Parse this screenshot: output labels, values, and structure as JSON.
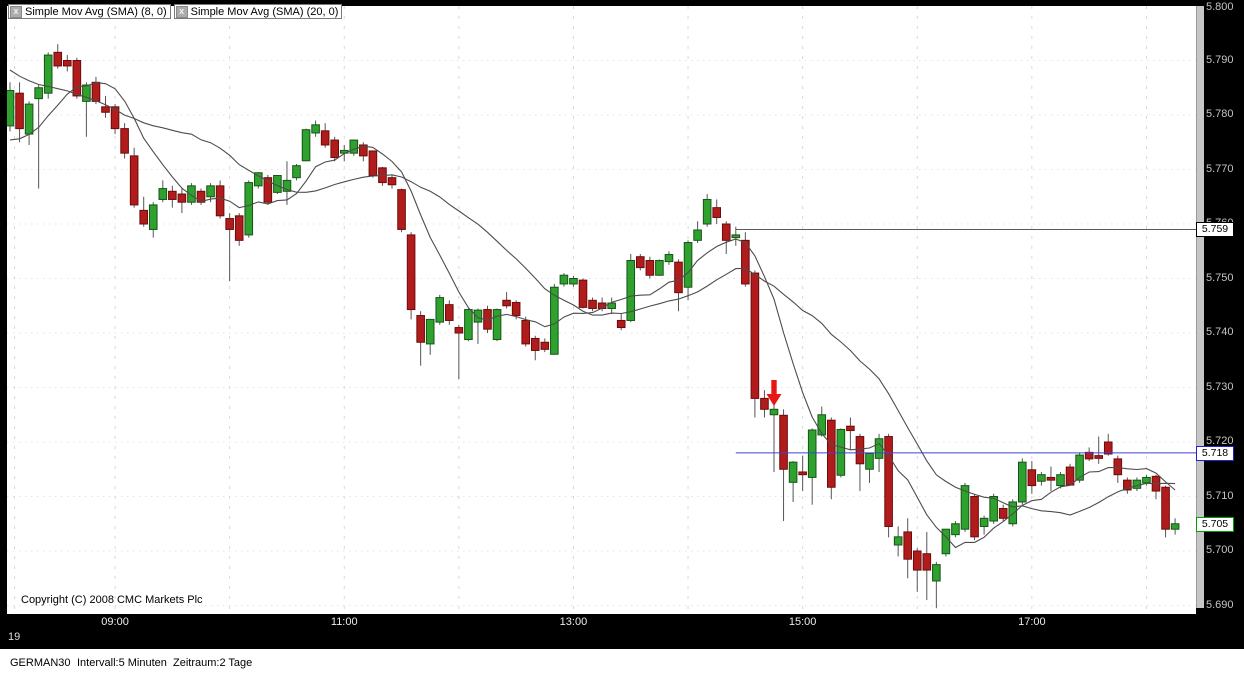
{
  "legend": [
    {
      "label": "Simple Mov Avg (SMA) (8, 0)"
    },
    {
      "label": "Simple Mov Avg (SMA) (20, 0)"
    }
  ],
  "copyright": "Copyright (C) 2008 CMC Markets Plc",
  "status_bar": {
    "symbol": "GERMAN30",
    "interval": "Intervall:5 Minuten",
    "period": "Zeitraum:2 Tage"
  },
  "x_axis": {
    "day_label": "19",
    "labeled_hours": [
      "09:00",
      "11:00",
      "13:00",
      "15:00",
      "17:00"
    ],
    "grid_hours": [
      9,
      10,
      11,
      12,
      13,
      14,
      15,
      16,
      17,
      18
    ]
  },
  "y_axis": {
    "labels": [
      "5.800",
      "5.790",
      "5.780",
      "5.770",
      "5.760",
      "5.750",
      "5.740",
      "5.730",
      "5.720",
      "5.710",
      "5.700",
      "5.690"
    ],
    "text_color": "#c4c4c4"
  },
  "price_markers": {
    "level": {
      "label": "5.759",
      "price": 5.759,
      "border": "#000000"
    },
    "bid": {
      "label": "5.718",
      "price": 5.718,
      "border": "#2222cc"
    },
    "last": {
      "label": "5.705",
      "price": 5.705,
      "border": "#00a000"
    }
  },
  "chart_data": {
    "type": "candlestick",
    "symbol": "GERMAN30",
    "interval_minutes": 5,
    "start_time": "08:05",
    "ylim": [
      5.69,
      5.8
    ],
    "grid": true,
    "colors": {
      "up_fill": "#2ea12e",
      "up_stroke": "#175517",
      "down_fill": "#b01c1c",
      "down_stroke": "#6e0a0a",
      "wick": "#555555",
      "sma": "#4d4d4d",
      "grid_h": "#e3e3e3",
      "grid_v": "#d9d9d9",
      "level_line": "#5a5a5a",
      "bid_line": "#4040d8",
      "arrow": "#e81717"
    },
    "overlays": [
      {
        "name": "SMA 8",
        "period": 8
      },
      {
        "name": "SMA 20",
        "period": 20
      }
    ],
    "sma_seed_closes": [
      5.8,
      5.799,
      5.7985,
      5.798,
      5.7975,
      5.797,
      5.7965,
      5.796,
      5.7955,
      5.795,
      5.7945,
      5.794,
      5.776,
      5.7755,
      5.7745,
      5.774,
      5.7735,
      5.773,
      5.7725
    ],
    "level_lines": [
      {
        "price": 5.759,
        "from_time": "14:25",
        "color_key": "level_line"
      },
      {
        "price": 5.718,
        "from_time": "14:25",
        "color_key": "bid_line"
      }
    ],
    "annotations": [
      {
        "type": "arrow-down",
        "time": "14:45",
        "price": 5.729,
        "color_key": "arrow"
      }
    ],
    "candles": [
      [
        "08:05",
        5.778,
        5.786,
        5.777,
        5.7845
      ],
      [
        "08:10",
        5.784,
        5.786,
        5.775,
        5.7775
      ],
      [
        "08:15",
        5.7765,
        5.7825,
        5.7745,
        5.782
      ],
      [
        "08:20",
        5.783,
        5.7855,
        5.7665,
        5.785
      ],
      [
        "08:25",
        5.784,
        5.7915,
        5.783,
        5.791
      ],
      [
        "08:30",
        5.7915,
        5.793,
        5.7885,
        5.789
      ],
      [
        "08:35",
        5.79,
        5.791,
        5.788,
        5.789
      ],
      [
        "08:40",
        5.79,
        5.7905,
        5.783,
        5.7835
      ],
      [
        "08:45",
        5.7825,
        5.786,
        5.776,
        5.7855
      ],
      [
        "08:50",
        5.786,
        5.787,
        5.782,
        5.7825
      ],
      [
        "08:55",
        5.7815,
        5.7835,
        5.7795,
        5.7805
      ],
      [
        "09:00",
        5.7815,
        5.782,
        5.7765,
        5.7775
      ],
      [
        "09:05",
        5.7775,
        5.7785,
        5.772,
        5.773
      ],
      [
        "09:10",
        5.7725,
        5.774,
        5.763,
        5.7635
      ],
      [
        "09:15",
        5.7625,
        5.765,
        5.7595,
        5.76
      ],
      [
        "09:20",
        5.759,
        5.764,
        5.7575,
        5.7635
      ],
      [
        "09:25",
        5.7645,
        5.768,
        5.764,
        5.7665
      ],
      [
        "09:30",
        5.766,
        5.767,
        5.763,
        5.7645
      ],
      [
        "09:35",
        5.7655,
        5.7665,
        5.762,
        5.764
      ],
      [
        "09:40",
        5.764,
        5.7675,
        5.7635,
        5.767
      ],
      [
        "09:45",
        5.766,
        5.7665,
        5.7635,
        5.764
      ],
      [
        "09:50",
        5.765,
        5.7675,
        5.764,
        5.767
      ],
      [
        "09:55",
        5.767,
        5.768,
        5.761,
        5.7615
      ],
      [
        "10:00",
        5.761,
        5.762,
        5.7495,
        5.759
      ],
      [
        "10:05",
        5.7615,
        5.762,
        5.756,
        5.757
      ],
      [
        "10:10",
        5.758,
        5.768,
        5.7575,
        5.7676
      ],
      [
        "10:15",
        5.767,
        5.7695,
        5.7665,
        5.7694
      ],
      [
        "10:20",
        5.7685,
        5.769,
        5.7635,
        5.764
      ],
      [
        "10:25",
        5.7658,
        5.769,
        5.7655,
        5.7689
      ],
      [
        "10:30",
        5.766,
        5.7715,
        5.7635,
        5.768
      ],
      [
        "10:35",
        5.7685,
        5.771,
        5.768,
        5.7707
      ],
      [
        "10:40",
        5.7716,
        5.7775,
        5.7715,
        5.7773
      ],
      [
        "10:45",
        5.7767,
        5.779,
        5.776,
        5.7782
      ],
      [
        "10:50",
        5.7771,
        5.7785,
        5.774,
        5.7745
      ],
      [
        "10:55",
        5.7754,
        5.776,
        5.7715,
        5.7722
      ],
      [
        "11:00",
        5.773,
        5.7745,
        5.7715,
        5.7735
      ],
      [
        "11:05",
        5.773,
        5.7755,
        5.7725,
        5.7754
      ],
      [
        "11:10",
        5.7745,
        5.775,
        5.7715,
        5.7725
      ],
      [
        "11:15",
        5.7734,
        5.7735,
        5.7685,
        5.7689
      ],
      [
        "11:20",
        5.7703,
        5.7705,
        5.767,
        5.7676
      ],
      [
        "11:25",
        5.7685,
        5.769,
        5.7665,
        5.7672
      ],
      [
        "11:30",
        5.7663,
        5.7665,
        5.7585,
        5.759
      ],
      [
        "11:35",
        5.758,
        5.7585,
        5.7425,
        5.7443
      ],
      [
        "11:40",
        5.7432,
        5.744,
        5.734,
        5.7383
      ],
      [
        "11:45",
        5.738,
        5.7425,
        5.736,
        5.7425
      ],
      [
        "11:50",
        5.742,
        5.747,
        5.7415,
        5.7465
      ],
      [
        "11:55",
        5.7452,
        5.746,
        5.7415,
        5.7423
      ],
      [
        "12:00",
        5.741,
        5.7415,
        5.7315,
        5.74
      ],
      [
        "12:05",
        5.7388,
        5.7445,
        5.7385,
        5.7443
      ],
      [
        "12:10",
        5.742,
        5.7445,
        5.738,
        5.7442
      ],
      [
        "12:15",
        5.7443,
        5.745,
        5.74,
        5.7407
      ],
      [
        "12:20",
        5.7388,
        5.7445,
        5.7385,
        5.7443
      ],
      [
        "12:25",
        5.746,
        5.7475,
        5.7445,
        5.745
      ],
      [
        "12:30",
        5.7456,
        5.746,
        5.7425,
        5.7432
      ],
      [
        "12:35",
        5.7423,
        5.743,
        5.7375,
        5.738
      ],
      [
        "12:40",
        5.739,
        5.7395,
        5.735,
        5.7368
      ],
      [
        "12:45",
        5.7383,
        5.739,
        5.7365,
        5.737
      ],
      [
        "12:50",
        5.7361,
        5.749,
        5.736,
        5.7484
      ],
      [
        "12:55",
        5.749,
        5.751,
        5.7485,
        5.7506
      ],
      [
        "13:00",
        5.749,
        5.7505,
        5.7485,
        5.75
      ],
      [
        "13:05",
        5.7497,
        5.75,
        5.7445,
        5.7447
      ],
      [
        "13:10",
        5.746,
        5.7465,
        5.744,
        5.7445
      ],
      [
        "13:15",
        5.7455,
        5.7465,
        5.744,
        5.7445
      ],
      [
        "13:20",
        5.7445,
        5.7465,
        5.7435,
        5.7455
      ],
      [
        "13:25",
        5.7423,
        5.7435,
        5.7405,
        5.741
      ],
      [
        "13:30",
        5.7423,
        5.7545,
        5.742,
        5.7533
      ],
      [
        "13:35",
        5.754,
        5.7545,
        5.7515,
        5.752
      ],
      [
        "13:40",
        5.7533,
        5.754,
        5.75,
        5.7506
      ],
      [
        "13:45",
        5.7506,
        5.7535,
        5.7505,
        5.7533
      ],
      [
        "13:50",
        5.7531,
        5.755,
        5.7525,
        5.7544
      ],
      [
        "13:55",
        5.753,
        5.7535,
        5.744,
        5.7474
      ],
      [
        "14:00",
        5.7484,
        5.757,
        5.746,
        5.7566
      ],
      [
        "14:05",
        5.757,
        5.7605,
        5.7565,
        5.7589
      ],
      [
        "14:10",
        5.76,
        5.7655,
        5.7595,
        5.7645
      ],
      [
        "14:15",
        5.763,
        5.7645,
        5.76,
        5.7612
      ],
      [
        "14:20",
        5.76,
        5.7605,
        5.7545,
        5.757
      ],
      [
        "14:25",
        5.7575,
        5.7595,
        5.756,
        5.758
      ],
      [
        "14:30",
        5.757,
        5.7585,
        5.7485,
        5.749
      ],
      [
        "14:35",
        5.751,
        5.7515,
        5.7245,
        5.728
      ],
      [
        "14:40",
        5.728,
        5.7295,
        5.7245,
        5.726
      ],
      [
        "14:45",
        5.725,
        5.727,
        5.7145,
        5.726
      ],
      [
        "14:50",
        5.7249,
        5.726,
        5.7055,
        5.715
      ],
      [
        "14:55",
        5.7126,
        5.7165,
        5.709,
        5.7163
      ],
      [
        "15:00",
        5.7145,
        5.7175,
        5.711,
        5.714
      ],
      [
        "15:05",
        5.7135,
        5.7225,
        5.7085,
        5.7222
      ],
      [
        "15:10",
        5.7213,
        5.7265,
        5.721,
        5.725
      ],
      [
        "15:15",
        5.724,
        5.7245,
        5.7095,
        5.7117
      ],
      [
        "15:20",
        5.7139,
        5.7225,
        5.7135,
        5.7223
      ],
      [
        "15:25",
        5.7229,
        5.7245,
        5.7185,
        5.7221
      ],
      [
        "15:30",
        5.721,
        5.7215,
        5.711,
        5.716
      ],
      [
        "15:35",
        5.715,
        5.718,
        5.7125,
        5.7179
      ],
      [
        "15:40",
        5.717,
        5.7215,
        5.7145,
        5.7206
      ],
      [
        "15:45",
        5.721,
        5.7215,
        5.7025,
        5.7045
      ],
      [
        "15:50",
        5.7011,
        5.7045,
        5.699,
        5.7026
      ],
      [
        "15:55",
        5.7035,
        5.706,
        5.695,
        5.6985
      ],
      [
        "16:00",
        5.7,
        5.7005,
        5.6925,
        5.6965
      ],
      [
        "16:05",
        5.6995,
        5.7035,
        5.691,
        5.6965
      ],
      [
        "16:10",
        5.6945,
        5.698,
        5.6895,
        5.6975
      ],
      [
        "16:15",
        5.6995,
        5.704,
        5.699,
        5.704
      ],
      [
        "16:20",
        5.703,
        5.7055,
        5.7025,
        5.705
      ],
      [
        "16:25",
        5.704,
        5.7125,
        5.7035,
        5.712
      ],
      [
        "16:30",
        5.71,
        5.7105,
        5.702,
        5.7026
      ],
      [
        "16:35",
        5.7045,
        5.7065,
        5.703,
        5.706
      ],
      [
        "16:40",
        5.7055,
        5.7105,
        5.705,
        5.71
      ],
      [
        "16:45",
        5.7078,
        5.7085,
        5.7055,
        5.706
      ],
      [
        "16:50",
        5.705,
        5.7095,
        5.7045,
        5.709
      ],
      [
        "16:55",
        5.709,
        5.717,
        5.7085,
        5.7163
      ],
      [
        "17:00",
        5.7149,
        5.7165,
        5.7105,
        5.712
      ],
      [
        "17:05",
        5.7128,
        5.7145,
        5.712,
        5.714
      ],
      [
        "17:10",
        5.7135,
        5.7155,
        5.711,
        5.713
      ],
      [
        "17:15",
        5.712,
        5.7145,
        5.7115,
        5.714
      ],
      [
        "17:20",
        5.7154,
        5.716,
        5.712,
        5.7121
      ],
      [
        "17:25",
        5.713,
        5.718,
        5.7125,
        5.7176
      ],
      [
        "17:30",
        5.7181,
        5.719,
        5.7165,
        5.7169
      ],
      [
        "17:35",
        5.7175,
        5.721,
        5.716,
        5.717
      ],
      [
        "17:40",
        5.72,
        5.7215,
        5.7175,
        5.7178
      ],
      [
        "17:45",
        5.7169,
        5.7175,
        5.7125,
        5.714
      ],
      [
        "17:50",
        5.713,
        5.7135,
        5.7105,
        5.7112
      ],
      [
        "17:55",
        5.7115,
        5.7135,
        5.711,
        5.713
      ],
      [
        "18:00",
        5.7125,
        5.714,
        5.712,
        5.7135
      ],
      [
        "18:05",
        5.7137,
        5.714,
        5.7095,
        5.711
      ],
      [
        "18:10",
        5.7117,
        5.712,
        5.7025,
        5.704
      ],
      [
        "18:15",
        5.704,
        5.706,
        5.703,
        5.705
      ]
    ]
  }
}
